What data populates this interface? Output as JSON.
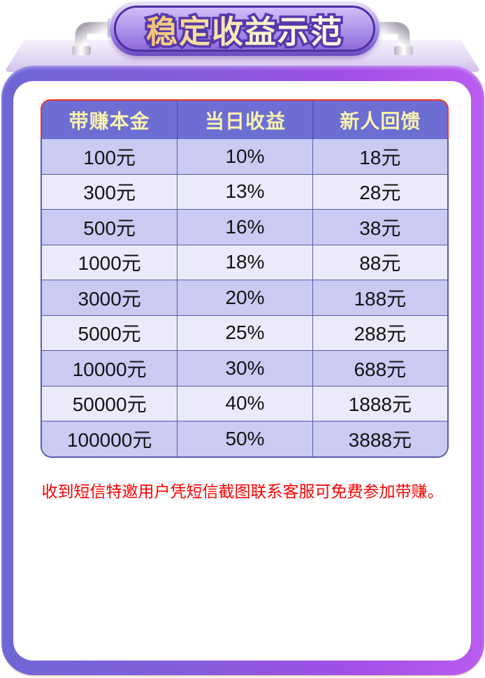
{
  "banner": {
    "title": "稳定收益示范"
  },
  "table": {
    "headers": [
      "带赚本金",
      "当日收益",
      "新人回馈"
    ],
    "rows": [
      [
        "100元",
        "10%",
        "18元"
      ],
      [
        "300元",
        "13%",
        "28元"
      ],
      [
        "500元",
        "16%",
        "38元"
      ],
      [
        "1000元",
        "18%",
        "88元"
      ],
      [
        "3000元",
        "20%",
        "188元"
      ],
      [
        "5000元",
        "25%",
        "288元"
      ],
      [
        "10000元",
        "30%",
        "688元"
      ],
      [
        "50000元",
        "40%",
        "1888元"
      ],
      [
        "100000元",
        "50%",
        "3888元"
      ]
    ]
  },
  "notice": {
    "text": "收到短信特邀用户凭短信截图联系客服可免费参加带赚。"
  },
  "icons": [
    "pipe-elbow-left-icon",
    "pipe-elbow-right-icon"
  ],
  "colors": {
    "frame_gradient_start": "#6e66d6",
    "frame_gradient_end": "#b95cf0",
    "header_bg": "#6c6ed3",
    "header_text": "#f8f3ae",
    "header_border": "#ee372b",
    "row_odd": "#cacaf3",
    "row_even": "#eaeafb",
    "cell_border": "#5a5aad",
    "notice_text": "#fe0000",
    "banner_stroke": "#5638ac",
    "banner_gold": "#efae54"
  }
}
